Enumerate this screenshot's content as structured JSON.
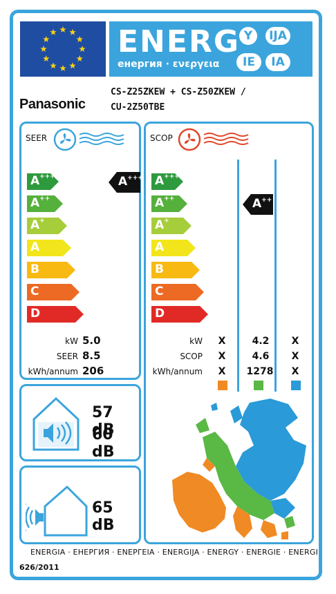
{
  "header": {
    "energy_title": "ENERG",
    "energy_subtitle": "енергия · ενεργεια",
    "lang_badges": [
      "Y",
      "IJA",
      "IE",
      "IA"
    ]
  },
  "brand": "Panasonic",
  "model": {
    "line1": "CS-Z25ZKEW + CS-Z50ZKEW /",
    "line2": "CU-2Z50TBE"
  },
  "seer_panel": {
    "title": "SEER",
    "classes": [
      {
        "base": "A",
        "sup": "+++",
        "color": "#2e9a3e"
      },
      {
        "base": "A",
        "sup": "++",
        "color": "#55b03c"
      },
      {
        "base": "A",
        "sup": "+",
        "color": "#a6cd3a"
      },
      {
        "base": "A",
        "sup": "",
        "color": "#f2e51c"
      },
      {
        "base": "B",
        "sup": "",
        "color": "#f8b912"
      },
      {
        "base": "C",
        "sup": "",
        "color": "#ec6a24"
      },
      {
        "base": "D",
        "sup": "",
        "color": "#e12a26"
      }
    ],
    "rating": {
      "base": "A",
      "sup": "+++"
    },
    "rows": [
      {
        "label": "kW",
        "value": "5.0"
      },
      {
        "label": "SEER",
        "value": "8.5"
      },
      {
        "label": "kWh/annum",
        "value": "206"
      }
    ]
  },
  "scop_panel": {
    "title": "SCOP",
    "classes": [
      {
        "base": "A",
        "sup": "+++",
        "color": "#2e9a3e"
      },
      {
        "base": "A",
        "sup": "++",
        "color": "#55b03c"
      },
      {
        "base": "A",
        "sup": "+",
        "color": "#a6cd3a"
      },
      {
        "base": "A",
        "sup": "",
        "color": "#f2e51c"
      },
      {
        "base": "B",
        "sup": "",
        "color": "#f8b912"
      },
      {
        "base": "C",
        "sup": "",
        "color": "#ec6a24"
      },
      {
        "base": "D",
        "sup": "",
        "color": "#e12a26"
      }
    ],
    "rating": {
      "base": "A",
      "sup": "++"
    },
    "rows": [
      {
        "label": "kW",
        "values": [
          "X",
          "4.2",
          "X"
        ]
      },
      {
        "label": "SCOP",
        "values": [
          "X",
          "4.6",
          "X"
        ]
      },
      {
        "label": "kWh/annum",
        "values": [
          "X",
          "1278",
          "X"
        ]
      }
    ],
    "zone_colors": [
      "#f08a24",
      "#5ab845",
      "#2a9ad8"
    ]
  },
  "noise": {
    "indoor_1": "57 dB",
    "indoor_2": "60 dB",
    "outdoor": "65 dB"
  },
  "footer": {
    "languages": "ENERGIA · ЕНЕРГИЯ · ΕΝΕΡΓΕΙΑ · ENERGIJA · ENERGY · ENERGIE · ENERGI",
    "regulation": "626/2011"
  },
  "colors": {
    "frame_blue": "#3ba4dc",
    "eu_blue": "#1f4da1",
    "eu_star": "#f7d117"
  }
}
